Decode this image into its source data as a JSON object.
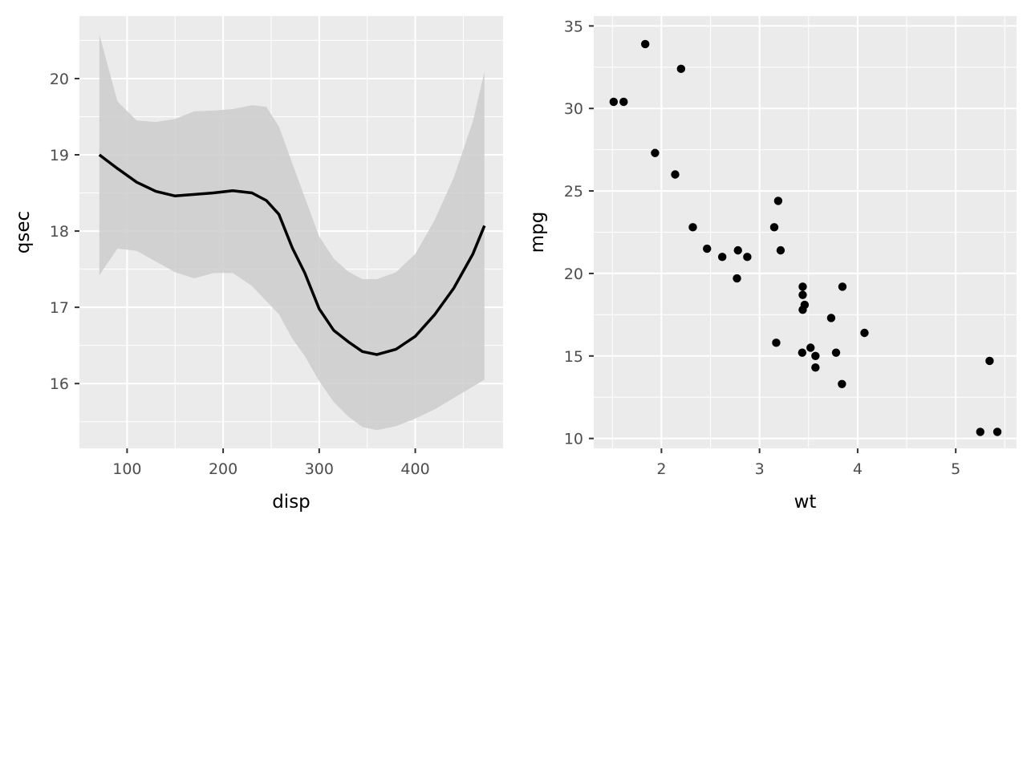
{
  "chart_data": [
    {
      "type": "line",
      "title": "",
      "xlabel": "disp",
      "ylabel": "qsec",
      "xlim": [
        50.4,
        491.4
      ],
      "ylim": [
        15.15,
        20.82
      ],
      "xticks": [
        100,
        200,
        300,
        400
      ],
      "yticks": [
        16,
        17,
        18,
        19,
        20
      ],
      "xtick_labels": [
        "100",
        "200",
        "300",
        "400"
      ],
      "ytick_labels": [
        "16",
        "17",
        "18",
        "19",
        "20"
      ],
      "grid": true,
      "panel_background": "#ebebeb",
      "line_color": "#000000",
      "band_color": "#cccccc",
      "series": [
        {
          "x": [
            71.1,
            90,
            110,
            130,
            150,
            170,
            190,
            210,
            230,
            245,
            258,
            272,
            285,
            300,
            315,
            330,
            345,
            360,
            380,
            400,
            420,
            440,
            460,
            472
          ],
          "y": [
            19.0,
            18.82,
            18.64,
            18.52,
            18.46,
            18.48,
            18.5,
            18.53,
            18.5,
            18.4,
            18.22,
            17.78,
            17.45,
            16.98,
            16.7,
            16.55,
            16.42,
            16.38,
            16.45,
            16.62,
            16.9,
            17.25,
            17.7,
            18.07
          ],
          "lower": [
            17.42,
            17.77,
            17.74,
            17.6,
            17.46,
            17.38,
            17.45,
            17.45,
            17.28,
            17.08,
            16.91,
            16.59,
            16.36,
            16.03,
            15.76,
            15.57,
            15.43,
            15.39,
            15.44,
            15.54,
            15.66,
            15.81,
            15.96,
            16.05
          ],
          "upper": [
            20.58,
            19.7,
            19.45,
            19.43,
            19.47,
            19.57,
            19.58,
            19.6,
            19.65,
            19.63,
            19.37,
            18.89,
            18.44,
            17.93,
            17.64,
            17.47,
            17.37,
            17.37,
            17.46,
            17.7,
            18.14,
            18.7,
            19.44,
            20.09
          ]
        }
      ]
    },
    {
      "type": "scatter",
      "title": "",
      "xlabel": "wt",
      "ylabel": "mpg",
      "xlim": [
        1.31,
        5.62
      ],
      "ylim": [
        9.4,
        35.6
      ],
      "xticks": [
        2,
        3,
        4,
        5
      ],
      "yticks": [
        10,
        15,
        20,
        25,
        30,
        35
      ],
      "xtick_labels": [
        "2",
        "3",
        "4",
        "5"
      ],
      "ytick_labels": [
        "10",
        "15",
        "20",
        "25",
        "30",
        "35"
      ],
      "grid": true,
      "panel_background": "#ebebeb",
      "point_color": "#000000",
      "series": [
        {
          "x": [
            2.62,
            2.875,
            2.32,
            3.215,
            3.44,
            3.46,
            3.57,
            3.19,
            3.15,
            3.44,
            3.44,
            4.07,
            3.73,
            3.78,
            5.25,
            5.424,
            5.345,
            2.2,
            1.615,
            1.835,
            2.465,
            3.52,
            3.435,
            3.84,
            3.845,
            1.935,
            2.14,
            1.513,
            3.17,
            2.77,
            3.57,
            2.78
          ],
          "y": [
            21.0,
            21.0,
            22.8,
            21.4,
            18.7,
            18.1,
            14.3,
            24.4,
            22.8,
            19.2,
            17.8,
            16.4,
            17.3,
            15.2,
            10.4,
            10.4,
            14.7,
            32.4,
            30.4,
            33.9,
            21.5,
            15.5,
            15.2,
            13.3,
            19.2,
            27.3,
            26.0,
            30.4,
            15.8,
            19.7,
            15.0,
            21.4
          ]
        }
      ]
    }
  ]
}
